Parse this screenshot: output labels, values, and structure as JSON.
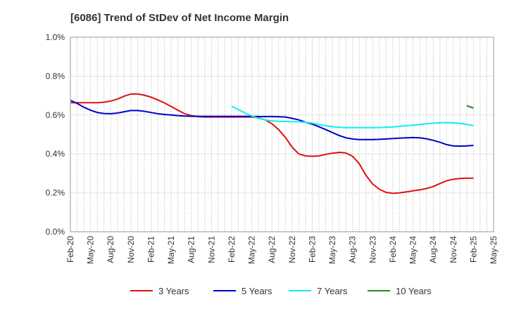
{
  "chart_data": {
    "type": "line",
    "title": "[6086]  Trend of StDev of Net Income Margin",
    "xlabel": "",
    "ylabel": "",
    "ylim": [
      0,
      1.0
    ],
    "y_ticks": [
      "0.0%",
      "0.2%",
      "0.4%",
      "0.6%",
      "0.8%",
      "1.0%"
    ],
    "x_ticks": [
      "Feb-20",
      "May-20",
      "Aug-20",
      "Nov-20",
      "Feb-21",
      "May-21",
      "Aug-21",
      "Nov-21",
      "Feb-22",
      "May-22",
      "Aug-22",
      "Nov-22",
      "Feb-23",
      "May-23",
      "Aug-23",
      "Nov-23",
      "Feb-24",
      "May-24",
      "Aug-24",
      "Nov-24",
      "Feb-25",
      "May-25"
    ],
    "grid": true,
    "legend_position": "bottom",
    "series": [
      {
        "name": "3 Years",
        "color": "#dd1111",
        "points": [
          [
            "Feb-20",
            0.663
          ],
          [
            "Mar-20",
            0.663
          ],
          [
            "Apr-20",
            0.663
          ],
          [
            "May-20",
            0.663
          ],
          [
            "Jun-20",
            0.663
          ],
          [
            "Jul-20",
            0.666
          ],
          [
            "Aug-20",
            0.672
          ],
          [
            "Sep-20",
            0.682
          ],
          [
            "Oct-20",
            0.697
          ],
          [
            "Nov-20",
            0.708
          ],
          [
            "Dec-20",
            0.708
          ],
          [
            "Jan-21",
            0.702
          ],
          [
            "Feb-21",
            0.692
          ],
          [
            "Mar-21",
            0.678
          ],
          [
            "Apr-21",
            0.662
          ],
          [
            "May-21",
            0.644
          ],
          [
            "Jun-21",
            0.625
          ],
          [
            "Jul-21",
            0.607
          ],
          [
            "Aug-21",
            0.597
          ],
          [
            "Sep-21",
            0.592
          ],
          [
            "Oct-21",
            0.59
          ],
          [
            "Nov-21",
            0.59
          ],
          [
            "Dec-21",
            0.59
          ],
          [
            "Jan-22",
            0.59
          ],
          [
            "Feb-22",
            0.59
          ],
          [
            "Mar-22",
            0.59
          ],
          [
            "Apr-22",
            0.59
          ],
          [
            "May-22",
            0.59
          ],
          [
            "Jun-22",
            0.585
          ],
          [
            "Jul-22",
            0.575
          ],
          [
            "Aug-22",
            0.555
          ],
          [
            "Sep-22",
            0.525
          ],
          [
            "Oct-22",
            0.485
          ],
          [
            "Nov-22",
            0.435
          ],
          [
            "Dec-22",
            0.4
          ],
          [
            "Jan-23",
            0.39
          ],
          [
            "Feb-23",
            0.388
          ],
          [
            "Mar-23",
            0.39
          ],
          [
            "Apr-23",
            0.398
          ],
          [
            "May-23",
            0.404
          ],
          [
            "Jun-23",
            0.408
          ],
          [
            "Jul-23",
            0.405
          ],
          [
            "Aug-23",
            0.388
          ],
          [
            "Sep-23",
            0.35
          ],
          [
            "Oct-23",
            0.29
          ],
          [
            "Nov-23",
            0.245
          ],
          [
            "Dec-23",
            0.218
          ],
          [
            "Jan-24",
            0.202
          ],
          [
            "Feb-24",
            0.198
          ],
          [
            "Mar-24",
            0.2
          ],
          [
            "Apr-24",
            0.205
          ],
          [
            "May-24",
            0.21
          ],
          [
            "Jun-24",
            0.215
          ],
          [
            "Jul-24",
            0.222
          ],
          [
            "Aug-24",
            0.232
          ],
          [
            "Sep-24",
            0.248
          ],
          [
            "Oct-24",
            0.262
          ],
          [
            "Nov-24",
            0.27
          ],
          [
            "Dec-24",
            0.274
          ],
          [
            "Jan-25",
            0.275
          ],
          [
            "Feb-25",
            0.275
          ]
        ]
      },
      {
        "name": "5 Years",
        "color": "#0000cc",
        "points": [
          [
            "Feb-20",
            0.675
          ],
          [
            "Mar-20",
            0.66
          ],
          [
            "Apr-20",
            0.64
          ],
          [
            "May-20",
            0.625
          ],
          [
            "Jun-20",
            0.613
          ],
          [
            "Jul-20",
            0.608
          ],
          [
            "Aug-20",
            0.607
          ],
          [
            "Sep-20",
            0.61
          ],
          [
            "Oct-20",
            0.617
          ],
          [
            "Nov-20",
            0.623
          ],
          [
            "Dec-20",
            0.623
          ],
          [
            "Jan-21",
            0.619
          ],
          [
            "Feb-21",
            0.613
          ],
          [
            "Mar-21",
            0.607
          ],
          [
            "Apr-21",
            0.603
          ],
          [
            "May-21",
            0.6
          ],
          [
            "Jun-21",
            0.597
          ],
          [
            "Jul-21",
            0.595
          ],
          [
            "Aug-21",
            0.594
          ],
          [
            "Sep-21",
            0.593
          ],
          [
            "Oct-21",
            0.593
          ],
          [
            "Nov-21",
            0.593
          ],
          [
            "Dec-21",
            0.593
          ],
          [
            "Jan-22",
            0.593
          ],
          [
            "Feb-22",
            0.593
          ],
          [
            "Mar-22",
            0.593
          ],
          [
            "Apr-22",
            0.593
          ],
          [
            "May-22",
            0.593
          ],
          [
            "Jun-22",
            0.592
          ],
          [
            "Jul-22",
            0.592
          ],
          [
            "Aug-22",
            0.592
          ],
          [
            "Sep-22",
            0.591
          ],
          [
            "Oct-22",
            0.59
          ],
          [
            "Nov-22",
            0.583
          ],
          [
            "Dec-22",
            0.575
          ],
          [
            "Jan-23",
            0.563
          ],
          [
            "Feb-23",
            0.553
          ],
          [
            "Mar-23",
            0.54
          ],
          [
            "Apr-23",
            0.525
          ],
          [
            "May-23",
            0.51
          ],
          [
            "Jun-23",
            0.495
          ],
          [
            "Jul-23",
            0.483
          ],
          [
            "Aug-23",
            0.477
          ],
          [
            "Sep-23",
            0.474
          ],
          [
            "Oct-23",
            0.474
          ],
          [
            "Nov-23",
            0.474
          ],
          [
            "Dec-23",
            0.475
          ],
          [
            "Jan-24",
            0.477
          ],
          [
            "Feb-24",
            0.479
          ],
          [
            "Mar-24",
            0.481
          ],
          [
            "Apr-24",
            0.483
          ],
          [
            "May-24",
            0.484
          ],
          [
            "Jun-24",
            0.483
          ],
          [
            "Jul-24",
            0.478
          ],
          [
            "Aug-24",
            0.47
          ],
          [
            "Sep-24",
            0.46
          ],
          [
            "Oct-24",
            0.448
          ],
          [
            "Nov-24",
            0.441
          ],
          [
            "Dec-24",
            0.44
          ],
          [
            "Jan-25",
            0.441
          ],
          [
            "Feb-25",
            0.444
          ]
        ]
      },
      {
        "name": "7 Years",
        "color": "#11eeee",
        "points": [
          [
            "Feb-22",
            0.645
          ],
          [
            "Mar-22",
            0.628
          ],
          [
            "Apr-22",
            0.61
          ],
          [
            "May-22",
            0.595
          ],
          [
            "Jun-22",
            0.583
          ],
          [
            "Jul-22",
            0.575
          ],
          [
            "Aug-22",
            0.57
          ],
          [
            "Sep-22",
            0.568
          ],
          [
            "Oct-22",
            0.567
          ],
          [
            "Nov-22",
            0.566
          ],
          [
            "Dec-22",
            0.565
          ],
          [
            "Jan-23",
            0.563
          ],
          [
            "Feb-23",
            0.558
          ],
          [
            "Mar-23",
            0.551
          ],
          [
            "Apr-23",
            0.545
          ],
          [
            "May-23",
            0.54
          ],
          [
            "Jun-23",
            0.537
          ],
          [
            "Jul-23",
            0.535
          ],
          [
            "Aug-23",
            0.535
          ],
          [
            "Sep-23",
            0.535
          ],
          [
            "Oct-23",
            0.535
          ],
          [
            "Nov-23",
            0.535
          ],
          [
            "Dec-23",
            0.535
          ],
          [
            "Jan-24",
            0.537
          ],
          [
            "Feb-24",
            0.539
          ],
          [
            "Mar-24",
            0.542
          ],
          [
            "Apr-24",
            0.545
          ],
          [
            "May-24",
            0.548
          ],
          [
            "Jun-24",
            0.551
          ],
          [
            "Jul-24",
            0.555
          ],
          [
            "Aug-24",
            0.558
          ],
          [
            "Sep-24",
            0.56
          ],
          [
            "Oct-24",
            0.561
          ],
          [
            "Nov-24",
            0.56
          ],
          [
            "Dec-24",
            0.557
          ],
          [
            "Jan-25",
            0.552
          ],
          [
            "Feb-25",
            0.546
          ]
        ]
      },
      {
        "name": "10 Years",
        "color": "#228822",
        "points": [
          [
            "Jan-25",
            0.648
          ],
          [
            "Feb-25",
            0.636
          ]
        ]
      }
    ]
  }
}
